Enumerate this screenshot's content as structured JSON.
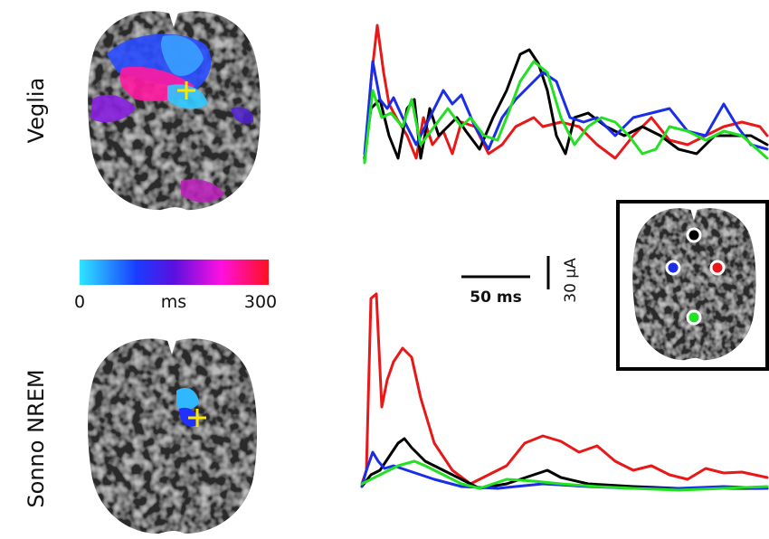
{
  "labels": {
    "wake": "Veglia",
    "nrem": "Sonno NREM"
  },
  "colorbar": {
    "min": 0,
    "unit": "ms",
    "max": 300
  },
  "scale": {
    "time": "50 ms",
    "current": "30 μA"
  }
}
